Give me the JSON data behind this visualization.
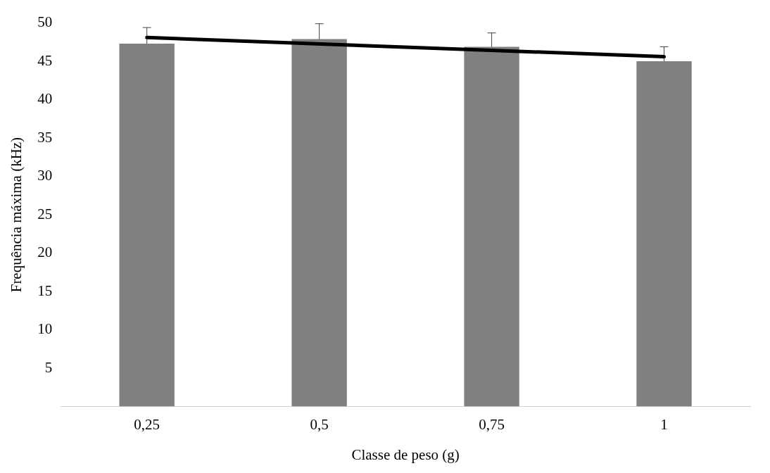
{
  "chart_data": {
    "type": "bar",
    "xlabel": "Classe de peso (g)",
    "ylabel": "Frequência máxima (kHz)",
    "categories": [
      "0,25",
      "0,5",
      "0,75",
      "1"
    ],
    "series": [
      {
        "color": "#808080",
        "values": [
          47.3,
          47.9,
          46.9,
          45.0
        ],
        "errors": [
          2.1,
          2.0,
          1.8,
          1.9
        ]
      },
      {
        "type": "line",
        "color": "#000000",
        "x": [
          "0,25",
          "1"
        ],
        "values": [
          48.1,
          45.6
        ]
      }
    ],
    "ylim": [
      0,
      50
    ],
    "yticks": [
      5,
      10,
      15,
      20,
      25,
      30,
      35,
      40,
      45,
      50
    ],
    "grid": false,
    "legend": false
  }
}
